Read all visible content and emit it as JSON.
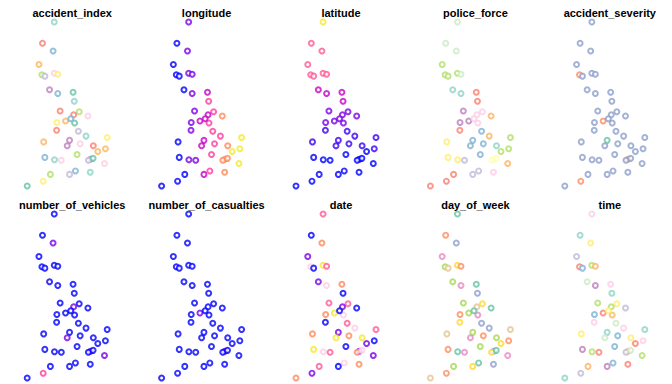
{
  "chart_data": {
    "type": "scatter",
    "marker": "circle_open",
    "tick_labels": false,
    "x": [
      -3.2,
      -4.2,
      -3.3,
      -4.5,
      -4.25,
      -3.2,
      -4.0,
      -2.9,
      -3.6,
      -1.6,
      -2.9,
      -1.5,
      -1.08,
      -1.55,
      -2.24,
      -2.98,
      -0.34,
      -1.47,
      -1.15,
      -1.9,
      -3.0,
      -4.1,
      -3.18,
      -4.0,
      -2.6,
      -1.26,
      -0.12,
      -0.3,
      0.1,
      1.3,
      1.15,
      0.12,
      1.07,
      -0.14,
      -1.4,
      -1.9,
      -3.53,
      -4.14,
      -5.5,
      -2.1,
      -0.5,
      -1.8,
      -2.7,
      0.5,
      -1.0
    ],
    "y": [
      58.6,
      57.5,
      57.1,
      56.4,
      55.87,
      55.95,
      55.8,
      55.9,
      55.1,
      54.97,
      54.9,
      54.5,
      53.96,
      53.8,
      53.48,
      53.4,
      53.74,
      53.38,
      52.95,
      52.48,
      53.0,
      52.4,
      51.48,
      51.6,
      51.45,
      51.75,
      51.5,
      51.45,
      51.55,
      52.63,
      52.05,
      52.2,
      51.28,
      50.83,
      50.9,
      50.72,
      50.72,
      50.37,
      50.12,
      52.2,
      52.7,
      53.6,
      54.0,
      51.9,
      52.3
    ],
    "panels": [
      {
        "title": "accident_index",
        "colors": [
          "#8DD3C7",
          "#FB8072",
          "#80B1D3",
          "#FDB462",
          "#B3DE69",
          "#FCCDE5",
          "#BEBADA",
          "#FFED6F",
          "#BC80BD",
          "#66C2A5",
          "#80B1D3",
          "#8DD3C7",
          "#B3DE69",
          "#FB8072",
          "#FDB462",
          "#FFED6F",
          "#FCCDE5",
          "#66C2A5",
          "#BEBADA",
          "#BC80BD",
          "#FB8072",
          "#FDB462",
          "#8DD3C7",
          "#80B1D3",
          "#FCCDE5",
          "#B3DE69",
          "#BC80BD",
          "#BEBADA",
          "#66C2A5",
          "#FFED6F",
          "#FDB462",
          "#FB8072",
          "#FCCDE5",
          "#8DD3C7",
          "#80B1D3",
          "#BEBADA",
          "#B3DE69",
          "#FFED6F",
          "#66C2A5",
          "#BC80BD",
          "#8DD3C7",
          "#80B1D3",
          "#FB8072",
          "#FDB462",
          "#FCCDE5"
        ]
      },
      {
        "title": "longitude",
        "colors": [
          "#7A00E8",
          "#0000FF",
          "#7A00E8",
          "#0000FF",
          "#0000FF",
          "#7A00E8",
          "#0000FF",
          "#7A00E8",
          "#0000FF",
          "#C800C8",
          "#7A00E8",
          "#FF3DA0",
          "#FF3DA0",
          "#C800C8",
          "#C800C8",
          "#7A00E8",
          "#FF8A5C",
          "#FF3DA0",
          "#FF3DA0",
          "#C800C8",
          "#7A00E8",
          "#0000FF",
          "#7A00E8",
          "#0000FF",
          "#7A00E8",
          "#FF3DA0",
          "#FF8A5C",
          "#FF8A5C",
          "#FF8A5C",
          "#F5E829",
          "#F5E829",
          "#FF8A5C",
          "#F5E829",
          "#FF8A5C",
          "#FF3DA0",
          "#C800C8",
          "#0000FF",
          "#0000FF",
          "#0000FF",
          "#C800C8",
          "#FF3DA0",
          "#C800C8",
          "#7A00E8",
          "#F5E829",
          "#FF3DA0"
        ]
      },
      {
        "title": "latitude",
        "colors": [
          "#F5E829",
          "#FF5A96",
          "#FF5A96",
          "#FF5A96",
          "#FF5A96",
          "#FF5A96",
          "#FF5A96",
          "#FF5A96",
          "#C800C8",
          "#C800C8",
          "#C800C8",
          "#C800C8",
          "#7A00E8",
          "#7A00E8",
          "#7A00E8",
          "#7A00E8",
          "#7A00E8",
          "#7A00E8",
          "#3A00F8",
          "#3A00F8",
          "#3A00F8",
          "#3A00F8",
          "#0000FF",
          "#0000FF",
          "#0000FF",
          "#0000FF",
          "#0000FF",
          "#0000FF",
          "#0000FF",
          "#3A00F8",
          "#3A00F8",
          "#3A00F8",
          "#0000FF",
          "#0000FF",
          "#0000FF",
          "#0000FF",
          "#0000FF",
          "#0000FF",
          "#0000FF",
          "#3A00F8",
          "#3A00F8",
          "#7A00E8",
          "#7A00E8",
          "#0000FF",
          "#3A00F8"
        ]
      },
      {
        "title": "police_force",
        "colors": [
          "#CCEBC5",
          "#CCEBC5",
          "#CCEBC5",
          "#B3DE69",
          "#B3DE69",
          "#B3DE69",
          "#B3DE69",
          "#CCEBC5",
          "#8DD3C7",
          "#FB8072",
          "#8DD3C7",
          "#FB8072",
          "#FCCDE5",
          "#FCCDE5",
          "#BC80BD",
          "#BC80BD",
          "#FDB462",
          "#FCCDE5",
          "#80B1D3",
          "#80B1D3",
          "#FB8072",
          "#FFED6F",
          "#FFED6F",
          "#FFED6F",
          "#BEBADA",
          "#80B1D3",
          "#FFFFB3",
          "#FFFFB3",
          "#FFFFB3",
          "#B3DE69",
          "#B3DE69",
          "#8DD3C7",
          "#FDB462",
          "#FCCDE5",
          "#BEBADA",
          "#BEBADA",
          "#FB8072",
          "#FB8072",
          "#FB8072",
          "#80B1D3",
          "#FDB462",
          "#FCCDE5",
          "#BC80BD",
          "#B3DE69",
          "#80B1D3"
        ]
      },
      {
        "title": "accident_severity",
        "colors": [
          "#8DA0CB",
          "#8DA0CB",
          "#8DA0CB",
          "#8DA0CB",
          "#FC8D62",
          "#8DA0CB",
          "#8DA0CB",
          "#8DA0CB",
          "#8DA0CB",
          "#8DA0CB",
          "#8DA0CB",
          "#8DA0CB",
          "#8DA0CB",
          "#8DA0CB",
          "#FC8D62",
          "#8DA0CB",
          "#8DA0CB",
          "#8DA0CB",
          "#8DA0CB",
          "#66C2A5",
          "#8DA0CB",
          "#8DA0CB",
          "#8DA0CB",
          "#8DA0CB",
          "#8DA0CB",
          "#8DA0CB",
          "#FC8D62",
          "#8DA0CB",
          "#8DA0CB",
          "#8DA0CB",
          "#8DA0CB",
          "#8DA0CB",
          "#8DA0CB",
          "#8DA0CB",
          "#8DA0CB",
          "#8DA0CB",
          "#8DA0CB",
          "#FC8D62",
          "#8DA0CB",
          "#8DA0CB",
          "#8DA0CB",
          "#8DA0CB",
          "#8DA0CB",
          "#8DA0CB",
          "#8DA0CB"
        ]
      },
      {
        "title": "number_of_vehicles",
        "colors": [
          "#0000FF",
          "#0000FF",
          "#7A00E8",
          "#0000FF",
          "#0000FF",
          "#0000FF",
          "#0000FF",
          "#0000FF",
          "#0000FF",
          "#0000FF",
          "#0000FF",
          "#0000FF",
          "#0000FF",
          "#7A00E8",
          "#0000FF",
          "#0000FF",
          "#0000FF",
          "#0000FF",
          "#0000FF",
          "#0000FF",
          "#0000FF",
          "#0000FF",
          "#0000FF",
          "#0000FF",
          "#0000FF",
          "#0000FF",
          "#7A00E8",
          "#0000FF",
          "#0000FF",
          "#0000FF",
          "#0000FF",
          "#0000FF",
          "#7A00E8",
          "#0000FF",
          "#0000FF",
          "#0000FF",
          "#0000FF",
          "#FF3DA0",
          "#0000FF",
          "#7A00E8",
          "#0000FF",
          "#0000FF",
          "#0000FF",
          "#0000FF",
          "#0000FF"
        ]
      },
      {
        "title": "number_of_casualties",
        "colors": [
          "#0000FF",
          "#0000FF",
          "#0000FF",
          "#0000FF",
          "#0000FF",
          "#0000FF",
          "#0000FF",
          "#0000FF",
          "#0000FF",
          "#0000FF",
          "#0000FF",
          "#0000FF",
          "#0000FF",
          "#0000FF",
          "#7A00E8",
          "#0000FF",
          "#0000FF",
          "#0000FF",
          "#0000FF",
          "#0000FF",
          "#0000FF",
          "#0000FF",
          "#0000FF",
          "#0000FF",
          "#0000FF",
          "#0000FF",
          "#7A00E8",
          "#0000FF",
          "#0000FF",
          "#0000FF",
          "#0000FF",
          "#0000FF",
          "#0000FF",
          "#0000FF",
          "#0000FF",
          "#0000FF",
          "#0000FF",
          "#0000FF",
          "#0000FF",
          "#0000FF",
          "#0000FF",
          "#0000FF",
          "#0000FF",
          "#0000FF",
          "#0000FF"
        ]
      },
      {
        "title": "date",
        "colors": [
          "#FF5A96",
          "#0000FF",
          "#FF8A5C",
          "#7A00E8",
          "#FCCDE5",
          "#F5E829",
          "#0000FF",
          "#FF5A96",
          "#7A00E8",
          "#FF8A5C",
          "#FCCDE5",
          "#0000FF",
          "#FF5A96",
          "#7A00E8",
          "#F5E829",
          "#FF8A5C",
          "#0000FF",
          "#FCCDE5",
          "#FF5A96",
          "#7A00E8",
          "#0000FF",
          "#FF8A5C",
          "#FCCDE5",
          "#F5E829",
          "#FF5A96",
          "#0000FF",
          "#7A00E8",
          "#FF8A5C",
          "#FCCDE5",
          "#FF5A96",
          "#0000FF",
          "#F5E829",
          "#7A00E8",
          "#FF8A5C",
          "#FCCDE5",
          "#0000FF",
          "#FF5A96",
          "#7A00E8",
          "#FF8A5C",
          "#F5E829",
          "#FCCDE5",
          "#0000FF",
          "#FF5A96",
          "#7A00E8",
          "#FF8A5C"
        ]
      },
      {
        "title": "day_of_week",
        "colors": [
          "#66C2A5",
          "#FC8D62",
          "#8DA0CB",
          "#E78AC3",
          "#A6D854",
          "#FFD92F",
          "#E5C494",
          "#FC8D62",
          "#A6D854",
          "#66C2A5",
          "#E78AC3",
          "#8DA0CB",
          "#FFD92F",
          "#E5C494",
          "#A6D854",
          "#FC8D62",
          "#66C2A5",
          "#E78AC3",
          "#8DA0CB",
          "#A6D854",
          "#FFD92F",
          "#E5C494",
          "#66C2A5",
          "#FC8D62",
          "#E78AC3",
          "#A6D854",
          "#8DA0CB",
          "#FFD92F",
          "#66C2A5",
          "#E5C494",
          "#FC8D62",
          "#A6D854",
          "#E78AC3",
          "#8DA0CB",
          "#66C2A5",
          "#FFD92F",
          "#A6D854",
          "#FC8D62",
          "#E5C494",
          "#E78AC3",
          "#8DA0CB",
          "#66C2A5",
          "#A6D854",
          "#FFD92F",
          "#FC8D62"
        ]
      },
      {
        "title": "time",
        "colors": [
          "#FCCDE5",
          "#8DD3C7",
          "#FFED6F",
          "#BEBADA",
          "#FB8072",
          "#B3DE69",
          "#80B1D3",
          "#FDB462",
          "#CCEBC5",
          "#FCCDE5",
          "#BC80BD",
          "#8DD3C7",
          "#FFED6F",
          "#B3DE69",
          "#FB8072",
          "#80B1D3",
          "#BEBADA",
          "#FDB462",
          "#CCEBC5",
          "#8DD3C7",
          "#FCCDE5",
          "#FFED6F",
          "#B3DE69",
          "#BC80BD",
          "#FB8072",
          "#80B1D3",
          "#FDB462",
          "#BEBADA",
          "#CCEBC5",
          "#8DD3C7",
          "#FCCDE5",
          "#FFED6F",
          "#B3DE69",
          "#FB8072",
          "#80B1D3",
          "#BC80BD",
          "#FDB462",
          "#BEBADA",
          "#8DD3C7",
          "#CCEBC5",
          "#FCCDE5",
          "#FFED6F",
          "#B3DE69",
          "#FB8072",
          "#80B1D3"
        ]
      }
    ]
  }
}
